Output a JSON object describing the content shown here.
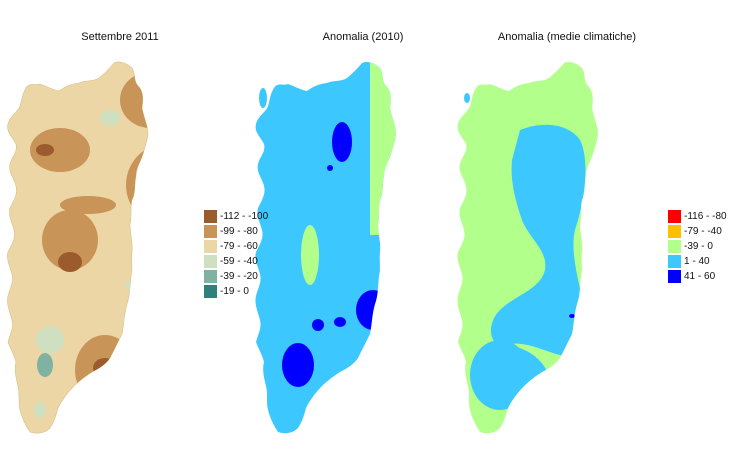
{
  "maps": [
    {
      "title": "Settembre 2011"
    },
    {
      "title": "Anomalia (2010)"
    },
    {
      "title": "Anomalia (medie climatiche)"
    }
  ],
  "legend_precip": [
    {
      "label": "-112 - -100",
      "color": "#9c5b2c"
    },
    {
      "label": "-99 - -80",
      "color": "#c89458"
    },
    {
      "label": "-79 - -60",
      "color": "#ecd6a6"
    },
    {
      "label": "-59 - -40",
      "color": "#cfe0c0"
    },
    {
      "label": "-39 - -20",
      "color": "#7fb2a0"
    },
    {
      "label": "-19 - 0",
      "color": "#2f7f7a"
    }
  ],
  "legend_anomaly": [
    {
      "label": "-116 - -80",
      "color": "#ff0000"
    },
    {
      "label": "-79 - -40",
      "color": "#ffc000"
    },
    {
      "label": "-39 - 0",
      "color": "#b2ff8c"
    },
    {
      "label": "1 - 40",
      "color": "#3cc8ff"
    },
    {
      "label": "41 - 60",
      "color": "#0000ff"
    }
  ]
}
